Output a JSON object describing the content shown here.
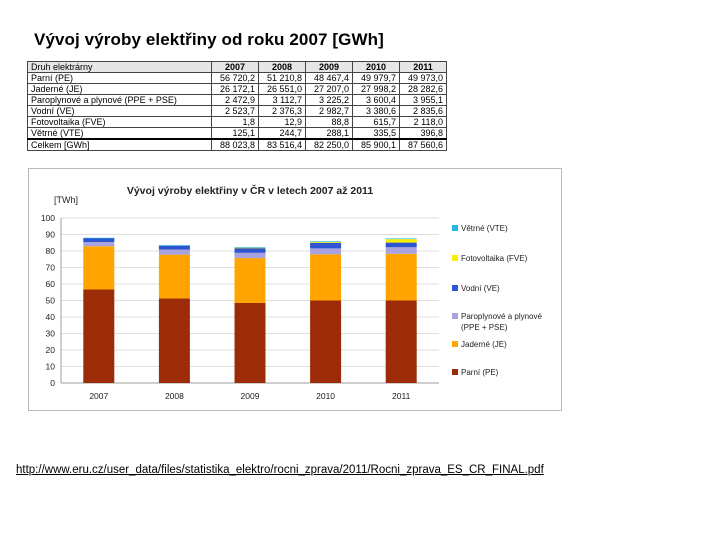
{
  "slide": {
    "title": "Vývoj výroby elektřiny od roku 2007 [GWh]",
    "source_url": "http://www.eru.cz/user_data/files/statistika_elektro/rocni_zprava/2011/Rocni_zprava_ES_CR_FINAL.pdf"
  },
  "table": {
    "header": [
      "Druh elektrárny",
      "2007",
      "2008",
      "2009",
      "2010",
      "2011"
    ],
    "rows": [
      [
        "Parní (PE)",
        "56 720,2",
        "51 210,8",
        "48 467,4",
        "49 979,7",
        "49 973,0"
      ],
      [
        "Jaderné (JE)",
        "26 172,1",
        "26 551,0",
        "27 207,0",
        "27 998,2",
        "28 282,6"
      ],
      [
        "Paroplynové a plynové (PPE + PSE)",
        "2 472,9",
        "3 112,7",
        "3 225,2",
        "3 600,4",
        "3 955,1"
      ],
      [
        "Vodní (VE)",
        "2 523,7",
        "2 376,3",
        "2 982,7",
        "3 380,6",
        "2 835,6"
      ],
      [
        "Fotovoltaika (FVE)",
        "1,8",
        "12,9",
        "88,8",
        "615,7",
        "2 118,0"
      ],
      [
        "Větrné (VTE)",
        "125,1",
        "244,7",
        "288,1",
        "335,5",
        "396,8"
      ],
      [
        "Celkem [GWh]",
        "88 023,8",
        "83 516,4",
        "82 250,0",
        "85 900,1",
        "87 560,6"
      ]
    ]
  },
  "chart_data": {
    "type": "bar",
    "stacked": true,
    "title": "Vývoj výroby elektřiny v ČR v letech 2007 až 2011",
    "ylabel": "[TWh]",
    "xlabel": "",
    "ylim": [
      0,
      100
    ],
    "yticks": [
      "0",
      "10",
      "20",
      "30",
      "40",
      "50",
      "60",
      "70",
      "80",
      "90",
      "100"
    ],
    "grid": true,
    "legend_position": "right",
    "categories": [
      "2007",
      "2008",
      "2009",
      "2010",
      "2011"
    ],
    "series": [
      {
        "name": "Parní (PE)",
        "color": "#9c2c08",
        "values": [
          56.7,
          51.2,
          48.5,
          50.0,
          50.0
        ]
      },
      {
        "name": "Jaderné (JE)",
        "color": "#ffa400",
        "values": [
          26.2,
          26.6,
          27.2,
          28.0,
          28.3
        ]
      },
      {
        "name": "Paroplynové a plynové (PPE + PSE)",
        "color": "#a9a2e0",
        "values": [
          2.5,
          3.1,
          3.2,
          3.6,
          4.0
        ]
      },
      {
        "name": "Vodní (VE)",
        "color": "#2d55d0",
        "values": [
          2.5,
          2.4,
          3.0,
          3.4,
          2.8
        ]
      },
      {
        "name": "Fotovoltaika (FVE)",
        "color": "#f6f000",
        "values": [
          0.0,
          0.0,
          0.1,
          0.6,
          2.1
        ]
      },
      {
        "name": "Větrné (VTE)",
        "color": "#27b4e8",
        "values": [
          0.1,
          0.2,
          0.3,
          0.3,
          0.4
        ]
      }
    ],
    "legend_order": [
      {
        "label_lines": [
          "Větrné (VTE)"
        ],
        "series": 5
      },
      {
        "label_lines": [
          "Fotovoltaika (FVE)"
        ],
        "series": 4
      },
      {
        "label_lines": [
          "Vodní (VE)"
        ],
        "series": 3
      },
      {
        "label_lines": [
          "Paroplynové a plynové",
          "(PPE + PSE)"
        ],
        "series": 2
      },
      {
        "label_lines": [
          "Jaderné (JE)"
        ],
        "series": 1
      },
      {
        "label_lines": [
          "Parní (PE)"
        ],
        "series": 0
      }
    ]
  }
}
